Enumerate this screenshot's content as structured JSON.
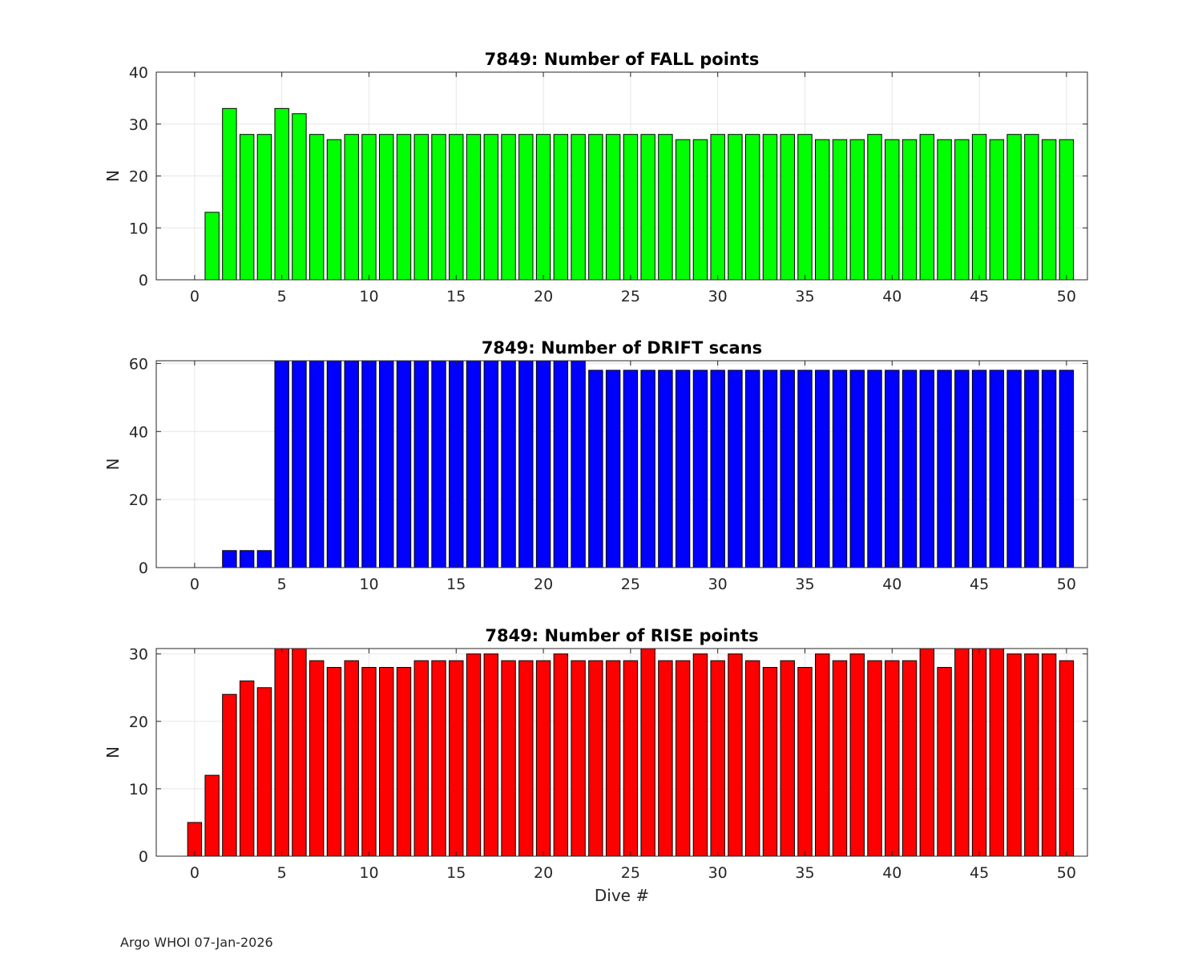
{
  "footer_text": "Argo WHOI 07-Jan-2026",
  "chart_data": [
    {
      "type": "bar",
      "title": "7849: Number of FALL points",
      "xlabel": "",
      "ylabel": "N",
      "xlim": [
        -2.2,
        51.2
      ],
      "ylim": [
        0,
        40
      ],
      "xticks": [
        0,
        5,
        10,
        15,
        20,
        25,
        30,
        35,
        40,
        45,
        50
      ],
      "yticks": [
        0,
        10,
        20,
        30,
        40
      ],
      "grid": true,
      "color": "#00ff00",
      "x": [
        1,
        2,
        3,
        4,
        5,
        6,
        7,
        8,
        9,
        10,
        11,
        12,
        13,
        14,
        15,
        16,
        17,
        18,
        19,
        20,
        21,
        22,
        23,
        24,
        25,
        26,
        27,
        28,
        29,
        30,
        31,
        32,
        33,
        34,
        35,
        36,
        37,
        38,
        39,
        40,
        41,
        42,
        43,
        44,
        45,
        46,
        47,
        48,
        49,
        50
      ],
      "values": [
        13,
        33,
        28,
        28,
        33,
        32,
        28,
        27,
        28,
        28,
        28,
        28,
        28,
        28,
        28,
        28,
        28,
        28,
        28,
        28,
        28,
        28,
        28,
        28,
        28,
        28,
        28,
        27,
        27,
        28,
        28,
        28,
        28,
        28,
        28,
        27,
        27,
        27,
        28,
        27,
        27,
        28,
        27,
        27,
        28,
        27,
        28,
        28,
        27,
        27
      ]
    },
    {
      "type": "bar",
      "title": "7849: Number of DRIFT scans",
      "xlabel": "",
      "ylabel": "N",
      "xlim": [
        -2.2,
        51.2
      ],
      "ylim": [
        0,
        60.8
      ],
      "xticks": [
        0,
        5,
        10,
        15,
        20,
        25,
        30,
        35,
        40,
        45,
        50
      ],
      "yticks": [
        0,
        20,
        40,
        60
      ],
      "grid": true,
      "color": "#0000ff",
      "x": [
        -1,
        0,
        1,
        2,
        3,
        4,
        5,
        6,
        7,
        8,
        9,
        10,
        11,
        12,
        13,
        14,
        15,
        16,
        17,
        18,
        19,
        20,
        21,
        22,
        23,
        24,
        25,
        26,
        27,
        28,
        29,
        30,
        31,
        32,
        33,
        34,
        35,
        36,
        37,
        38,
        39,
        40,
        41,
        42,
        43,
        44,
        45,
        46,
        47,
        48,
        49,
        50
      ],
      "values": [
        0,
        0,
        0,
        5,
        5,
        5,
        61,
        61,
        61,
        61,
        61,
        61,
        61,
        61,
        61,
        61,
        61,
        61,
        61,
        61,
        61,
        61,
        61,
        61,
        58,
        58,
        58,
        58,
        58,
        58,
        58,
        58,
        58,
        58,
        58,
        58,
        58,
        58,
        58,
        58,
        58,
        58,
        58,
        58,
        58,
        58,
        58,
        58,
        58,
        58,
        58,
        58
      ]
    },
    {
      "type": "bar",
      "title": "7849: Number of RISE points",
      "xlabel": "Dive #",
      "ylabel": "N",
      "xlim": [
        -2.2,
        51.2
      ],
      "ylim": [
        0,
        30.8
      ],
      "xticks": [
        0,
        5,
        10,
        15,
        20,
        25,
        30,
        35,
        40,
        45,
        50
      ],
      "yticks": [
        0,
        10,
        20,
        30
      ],
      "grid": true,
      "color": "#ff0000",
      "x": [
        0,
        1,
        2,
        3,
        4,
        5,
        6,
        7,
        8,
        9,
        10,
        11,
        12,
        13,
        14,
        15,
        16,
        17,
        18,
        19,
        20,
        21,
        22,
        23,
        24,
        25,
        26,
        27,
        28,
        29,
        30,
        31,
        32,
        33,
        34,
        35,
        36,
        37,
        38,
        39,
        40,
        41,
        42,
        43,
        44,
        45,
        46,
        47,
        48,
        49,
        50
      ],
      "values": [
        5,
        12,
        24,
        26,
        25,
        31,
        31,
        29,
        28,
        29,
        28,
        28,
        28,
        29,
        29,
        29,
        30,
        30,
        29,
        29,
        29,
        30,
        29,
        29,
        29,
        29,
        31,
        29,
        29,
        30,
        29,
        30,
        29,
        28,
        29,
        28,
        30,
        29,
        30,
        29,
        29,
        29,
        31,
        28,
        31,
        31,
        31,
        30,
        30,
        30,
        29
      ]
    }
  ]
}
